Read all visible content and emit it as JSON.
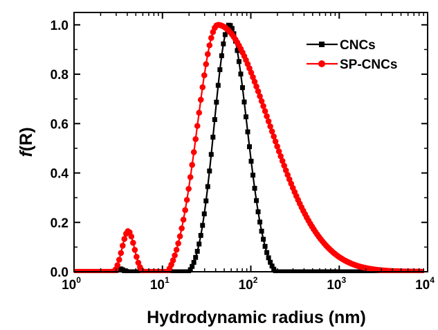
{
  "chart_data": {
    "type": "line",
    "xlabel": "Hydrodynamic radius (nm)",
    "ylabel_italic": "f",
    "ylabel_rest": "(R)",
    "x_scale": "log",
    "xlim": [
      1,
      10000
    ],
    "ylim": [
      0,
      1.05
    ],
    "grid": false,
    "legend_position": "top-right",
    "x_ticks": [
      {
        "value": 1,
        "base": "10",
        "exp": "0"
      },
      {
        "value": 10,
        "base": "10",
        "exp": "1"
      },
      {
        "value": 100,
        "base": "10",
        "exp": "2"
      },
      {
        "value": 1000,
        "base": "10",
        "exp": "3"
      },
      {
        "value": 10000,
        "base": "10",
        "exp": "4"
      }
    ],
    "y_ticks": [
      {
        "value": 0.0,
        "label": "0.0"
      },
      {
        "value": 0.2,
        "label": "0.2"
      },
      {
        "value": 0.4,
        "label": "0.4"
      },
      {
        "value": 0.6,
        "label": "0.6"
      },
      {
        "value": 0.8,
        "label": "0.8"
      },
      {
        "value": 1.0,
        "label": "1.0"
      }
    ],
    "series": [
      {
        "name": "CNCs",
        "color": "#000000",
        "marker": "square",
        "x_range": [
          1,
          8500
        ],
        "segments": [
          {
            "type": "gauss",
            "center": 3.3,
            "sigma_log": 0.035,
            "amplitude": 0.012
          },
          {
            "type": "gauss_bounded",
            "center": 57,
            "sigma_log_left": 0.17,
            "sigma_log_right": 0.2,
            "amplitude": 1.0,
            "zero_below": 20,
            "zero_above": 190
          }
        ]
      },
      {
        "name": "SP-CNCs",
        "color": "#ff0000",
        "marker": "circle",
        "x_range": [
          1,
          8500
        ],
        "segments": [
          {
            "type": "gauss_bounded",
            "center": 4.1,
            "sigma_log": 0.07,
            "amplitude": 0.165,
            "zero_below": 2.85,
            "zero_above": 6.0
          },
          {
            "type": "gauss_skew",
            "center": 42,
            "sigma_log_left": 0.23,
            "sigma_log_right": 0.58,
            "amplitude": 1.0,
            "zero_below": 11.5
          }
        ]
      }
    ]
  }
}
